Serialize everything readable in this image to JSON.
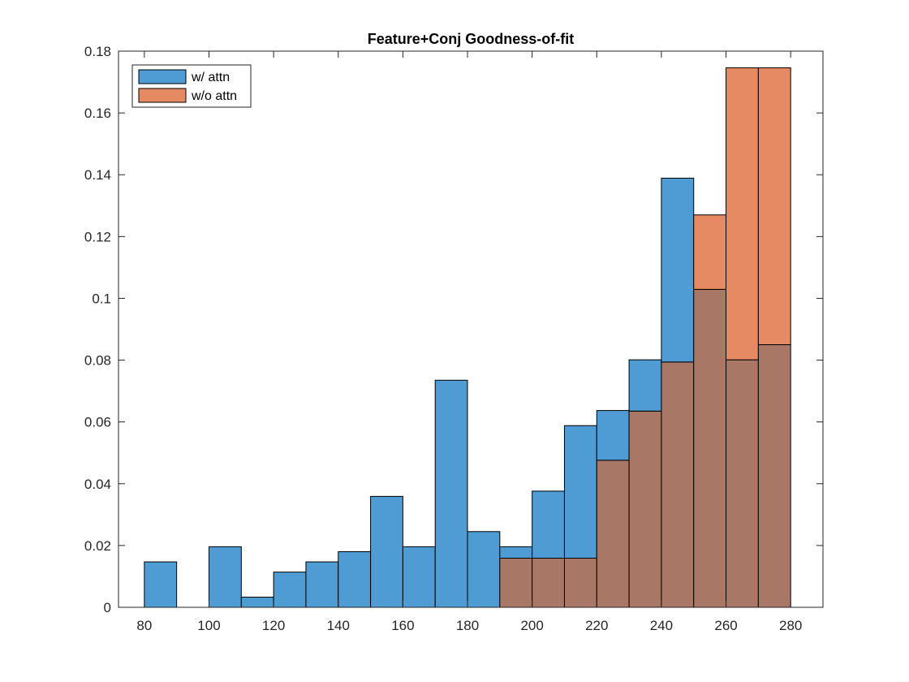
{
  "chart_data": {
    "type": "bar",
    "title": "Feature+Conj Goodness-of-fit",
    "xlabel": "",
    "ylabel": "",
    "xlim": [
      72,
      290
    ],
    "ylim": [
      0,
      0.18
    ],
    "xticks": [
      80,
      100,
      120,
      140,
      160,
      180,
      200,
      220,
      240,
      260,
      280
    ],
    "xtick_labels": [
      "80",
      "100",
      "120",
      "140",
      "160",
      "180",
      "200",
      "220",
      "240",
      "260",
      "280"
    ],
    "yticks": [
      0,
      0.02,
      0.04,
      0.06,
      0.08,
      0.1,
      0.12,
      0.14,
      0.16,
      0.18
    ],
    "ytick_labels": [
      "0",
      "0.02",
      "0.04",
      "0.06",
      "0.08",
      "0.1",
      "0.12",
      "0.14",
      "0.16",
      "0.18"
    ],
    "bin_edges": [
      80,
      90,
      100,
      110,
      120,
      130,
      140,
      150,
      160,
      170,
      180,
      190,
      200,
      210,
      220,
      230,
      240,
      250,
      260,
      270,
      280
    ],
    "grid": false,
    "legend_position": "top-left",
    "series": [
      {
        "name": "w/ attn",
        "color": "#4f9bd4",
        "values": [
          0.0147,
          0,
          0.0196,
          0.0033,
          0.0114,
          0.0147,
          0.018,
          0.0359,
          0.0196,
          0.0735,
          0.0245,
          0.0196,
          0.0376,
          0.0588,
          0.0637,
          0.0801,
          0.1389,
          0.1029,
          0.0801,
          0.085
        ]
      },
      {
        "name": "w/o attn",
        "color": "#e58a63",
        "values": [
          0,
          0,
          0,
          0,
          0,
          0,
          0,
          0,
          0,
          0,
          0,
          0.0159,
          0.0159,
          0.0159,
          0.0476,
          0.0635,
          0.0794,
          0.127,
          0.1746,
          0.1746
        ]
      }
    ],
    "overlap_color": "#a97766"
  }
}
